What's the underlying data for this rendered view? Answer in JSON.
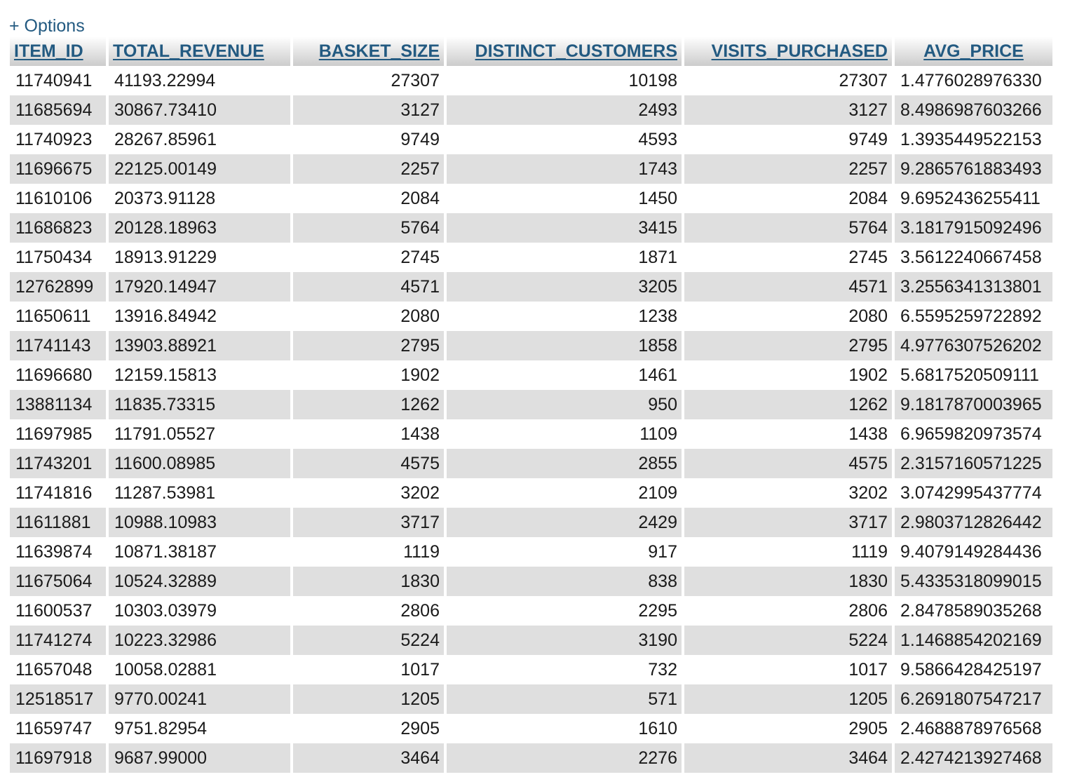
{
  "options_label": "+ Options",
  "colors": {
    "link": "#235a81",
    "row_even": "#dfdfdf",
    "row_odd": "#ffffff"
  },
  "table": {
    "columns": [
      "ITEM_ID",
      "TOTAL_REVENUE",
      "BASKET_SIZE",
      "DISTINCT_CUSTOMERS",
      "VISITS_PURCHASED",
      "AVG_PRICE"
    ],
    "rows": [
      [
        "11740941",
        "41193.22994",
        "27307",
        "10198",
        "27307",
        "1.4776028976330"
      ],
      [
        "11685694",
        "30867.73410",
        "3127",
        "2493",
        "3127",
        "8.4986987603266"
      ],
      [
        "11740923",
        "28267.85961",
        "9749",
        "4593",
        "9749",
        "1.3935449522153"
      ],
      [
        "11696675",
        "22125.00149",
        "2257",
        "1743",
        "2257",
        "9.2865761883493"
      ],
      [
        "11610106",
        "20373.91128",
        "2084",
        "1450",
        "2084",
        "9.6952436255411"
      ],
      [
        "11686823",
        "20128.18963",
        "5764",
        "3415",
        "5764",
        "3.1817915092496"
      ],
      [
        "11750434",
        "18913.91229",
        "2745",
        "1871",
        "2745",
        "3.5612240667458"
      ],
      [
        "12762899",
        "17920.14947",
        "4571",
        "3205",
        "4571",
        "3.2556341313801"
      ],
      [
        "11650611",
        "13916.84942",
        "2080",
        "1238",
        "2080",
        "6.5595259722892"
      ],
      [
        "11741143",
        "13903.88921",
        "2795",
        "1858",
        "2795",
        "4.9776307526202"
      ],
      [
        "11696680",
        "12159.15813",
        "1902",
        "1461",
        "1902",
        "5.6817520509111"
      ],
      [
        "13881134",
        "11835.73315",
        "1262",
        "950",
        "1262",
        "9.1817870003965"
      ],
      [
        "11697985",
        "11791.05527",
        "1438",
        "1109",
        "1438",
        "6.9659820973574"
      ],
      [
        "11743201",
        "11600.08985",
        "4575",
        "2855",
        "4575",
        "2.3157160571225"
      ],
      [
        "11741816",
        "11287.53981",
        "3202",
        "2109",
        "3202",
        "3.0742995437774"
      ],
      [
        "11611881",
        "10988.10983",
        "3717",
        "2429",
        "3717",
        "2.9803712826442"
      ],
      [
        "11639874",
        "10871.38187",
        "1119",
        "917",
        "1119",
        "9.4079149284436"
      ],
      [
        "11675064",
        "10524.32889",
        "1830",
        "838",
        "1830",
        "5.4335318099015"
      ],
      [
        "11600537",
        "10303.03979",
        "2806",
        "2295",
        "2806",
        "2.8478589035268"
      ],
      [
        "11741274",
        "10223.32986",
        "5224",
        "3190",
        "5224",
        "1.1468854202169"
      ],
      [
        "11657048",
        "10058.02881",
        "1017",
        "732",
        "1017",
        "9.5866428425197"
      ],
      [
        "12518517",
        "9770.00241",
        "1205",
        "571",
        "1205",
        "6.2691807547217"
      ],
      [
        "11659747",
        "9751.82954",
        "2905",
        "1610",
        "2905",
        "2.4688878976568"
      ],
      [
        "11697918",
        "9687.99000",
        "3464",
        "2276",
        "3464",
        "2.4274213927468"
      ]
    ]
  }
}
